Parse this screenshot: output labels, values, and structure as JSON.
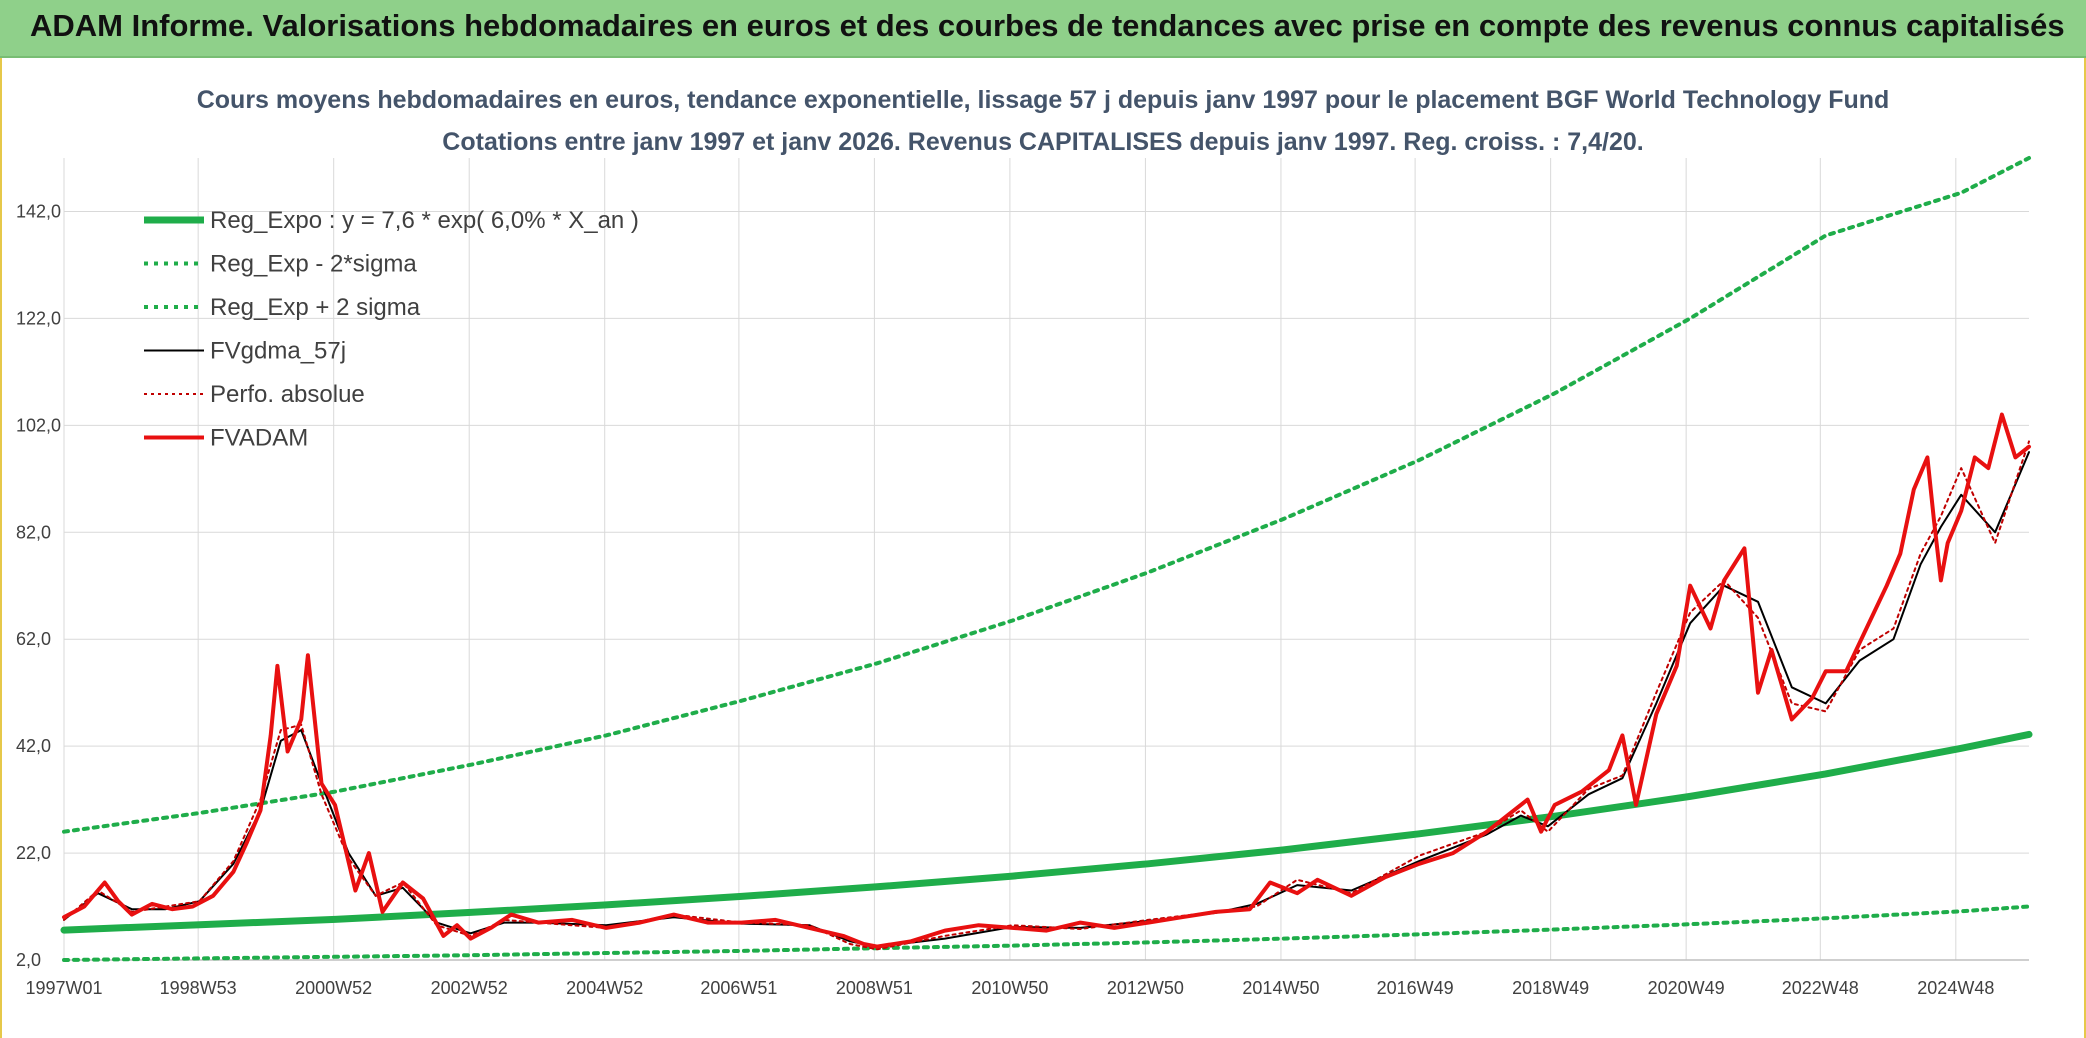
{
  "banner": {
    "title": "ADAM Informe. Valorisations hebdomadaires en euros et des courbes de tendances avec prise en compte des revenus connus capitalisés"
  },
  "colors": {
    "banner_bg": "#8fd08a",
    "regression": "#1fad4a",
    "sigma_bands": "#1fad4a",
    "gdma": "#000000",
    "perfo": "#c00000",
    "fvadam": "#e81010"
  },
  "chart_data": {
    "type": "line",
    "title_line1": "Cours moyens hebdomadaires en euros, tendance exponentielle, lissage 57 j depuis janv 1997 pour le placement BGF World Technology Fund",
    "title_line2": "Cotations entre janv 1997 et janv 2026. Revenus CAPITALISES depuis janv 1997. Reg. croiss. : 7,4/20.",
    "xlabel": "",
    "ylabel": "",
    "x_range_years": [
      1997.0,
      2026.0
    ],
    "ylim": [
      2,
      152
    ],
    "y_ticks": [
      2,
      22,
      42,
      62,
      82,
      102,
      122,
      142
    ],
    "y_tick_labels": [
      "2,0",
      "22,0",
      "42,0",
      "62,0",
      "82,0",
      "102,0",
      "122,0",
      "142,0"
    ],
    "x_tick_years": [
      1997.0,
      1998.98,
      2000.98,
      2002.98,
      2004.98,
      2006.96,
      2008.96,
      2010.96,
      2012.96,
      2014.96,
      2016.94,
      2018.94,
      2020.94,
      2022.92,
      2024.92
    ],
    "x_tick_labels": [
      "1997W01",
      "1998W53",
      "2000W52",
      "2002W52",
      "2004W52",
      "2006W51",
      "2008W51",
      "2010W50",
      "2012W50",
      "2014W50",
      "2016W49",
      "2018W49",
      "2020W49",
      "2022W48",
      "2024W48"
    ],
    "grid": true,
    "legend_position": "top-left",
    "series": [
      {
        "name": "Reg_Expo : y = 7,6 * exp( 6,0% *  X_an )",
        "style": "solid-thick",
        "color": "#1fad4a",
        "x": [
          1997,
          1999,
          2001,
          2003,
          2005,
          2007,
          2009,
          2011,
          2013,
          2015,
          2017,
          2019,
          2021,
          2023,
          2025,
          2026
        ],
        "y": [
          7.6,
          8.6,
          9.6,
          10.9,
          12.3,
          13.9,
          15.7,
          17.7,
          20.0,
          22.6,
          25.6,
          28.9,
          32.6,
          36.8,
          41.6,
          44.2
        ]
      },
      {
        "name": "Reg_Exp - 2*sigma",
        "style": "dotted",
        "color": "#1fad4a",
        "x": [
          1997,
          1999,
          2001,
          2003,
          2005,
          2007,
          2009,
          2011,
          2013,
          2015,
          2017,
          2019,
          2021,
          2023,
          2025,
          2026
        ],
        "y": [
          2.0,
          2.3,
          2.6,
          2.9,
          3.3,
          3.7,
          4.2,
          4.7,
          5.3,
          6.0,
          6.8,
          7.7,
          8.7,
          9.8,
          11.1,
          12.0
        ]
      },
      {
        "name": "Reg_Exp + 2 sigma",
        "style": "dotted",
        "color": "#1fad4a",
        "x": [
          1997,
          1999,
          2001,
          2003,
          2005,
          2007,
          2009,
          2011,
          2013,
          2015,
          2017,
          2019,
          2021,
          2023,
          2025,
          2026
        ],
        "y": [
          26.0,
          29.5,
          33.5,
          38.5,
          44.0,
          50.5,
          57.5,
          65.5,
          74.5,
          84.5,
          95.5,
          108.0,
          122.0,
          137.5,
          145.5,
          152.0
        ]
      },
      {
        "name": "FVgdma_57j",
        "style": "solid-thin",
        "color": "#000000",
        "x": [
          1997.0,
          1997.5,
          1998.0,
          1998.5,
          1999.0,
          1999.5,
          1999.9,
          2000.2,
          2000.5,
          2000.8,
          2001.2,
          2001.6,
          2002.0,
          2002.5,
          2003.0,
          2003.5,
          2004.0,
          2005.0,
          2006.0,
          2007.0,
          2008.0,
          2008.6,
          2009.0,
          2010.0,
          2011.0,
          2012.0,
          2013.0,
          2014.0,
          2014.6,
          2015.2,
          2016.0,
          2017.0,
          2018.0,
          2018.5,
          2018.9,
          2019.5,
          2020.0,
          2020.5,
          2021.0,
          2021.5,
          2022.0,
          2022.5,
          2023.0,
          2023.5,
          2024.0,
          2024.4,
          2024.7,
          2025.0,
          2025.5,
          2026.0
        ],
        "y": [
          9.5,
          14.5,
          11.5,
          11.5,
          13.0,
          20.0,
          30.0,
          43.0,
          45.0,
          35.0,
          22.0,
          14.0,
          15.5,
          9.0,
          7.0,
          9.0,
          9.0,
          8.5,
          10.0,
          8.8,
          8.5,
          5.5,
          4.5,
          6.0,
          8.2,
          8.0,
          9.3,
          10.8,
          12.5,
          16.0,
          15.0,
          20.5,
          25.5,
          29.0,
          27.0,
          33.0,
          36.0,
          50.0,
          65.0,
          72.0,
          69.0,
          53.0,
          50.0,
          58.0,
          62.0,
          76.0,
          83.0,
          89.0,
          82.0,
          97.0
        ]
      },
      {
        "name": "Perfo. absolue",
        "style": "dotted-thin",
        "color": "#c00000",
        "x": [
          1997.0,
          1997.5,
          1998.0,
          1998.5,
          1999.0,
          1999.5,
          1999.9,
          2000.2,
          2000.5,
          2000.8,
          2001.2,
          2001.6,
          2002.0,
          2002.5,
          2003.0,
          2003.5,
          2004.0,
          2005.0,
          2006.0,
          2007.0,
          2008.0,
          2008.6,
          2009.0,
          2010.0,
          2011.0,
          2012.0,
          2013.0,
          2014.0,
          2014.6,
          2015.2,
          2016.0,
          2017.0,
          2018.0,
          2018.5,
          2018.9,
          2019.5,
          2020.0,
          2020.5,
          2021.0,
          2021.5,
          2022.0,
          2022.5,
          2023.0,
          2023.5,
          2024.0,
          2024.4,
          2024.7,
          2025.0,
          2025.5,
          2026.0
        ],
        "y": [
          9.5,
          15.0,
          11.0,
          12.0,
          13.0,
          20.5,
          32.0,
          45.0,
          46.0,
          33.0,
          21.0,
          14.0,
          16.5,
          8.5,
          6.5,
          9.5,
          9.0,
          8.0,
          10.5,
          9.0,
          8.5,
          5.0,
          4.0,
          6.5,
          8.5,
          7.8,
          9.5,
          11.0,
          12.0,
          17.0,
          14.5,
          21.5,
          26.0,
          30.0,
          26.0,
          34.0,
          36.5,
          52.0,
          67.0,
          73.0,
          66.0,
          50.0,
          48.5,
          60.0,
          64.0,
          78.0,
          85.0,
          94.0,
          80.0,
          99.0
        ]
      },
      {
        "name": "FVADAM",
        "style": "solid-thick",
        "color": "#e81010",
        "x": [
          1997.0,
          1997.3,
          1997.6,
          1997.8,
          1998.0,
          1998.3,
          1998.6,
          1998.9,
          1999.2,
          1999.5,
          1999.7,
          1999.9,
          2000.05,
          2000.15,
          2000.3,
          2000.5,
          2000.6,
          2000.8,
          2001.0,
          2001.3,
          2001.5,
          2001.7,
          2002.0,
          2002.3,
          2002.6,
          2002.8,
          2003.0,
          2003.3,
          2003.6,
          2004.0,
          2004.5,
          2005.0,
          2005.5,
          2006.0,
          2006.5,
          2007.0,
          2007.5,
          2008.0,
          2008.5,
          2008.8,
          2009.0,
          2009.5,
          2010.0,
          2010.5,
          2011.0,
          2011.5,
          2012.0,
          2012.5,
          2013.0,
          2013.5,
          2014.0,
          2014.5,
          2014.8,
          2015.2,
          2015.5,
          2016.0,
          2016.5,
          2017.0,
          2017.5,
          2018.0,
          2018.3,
          2018.6,
          2018.8,
          2019.0,
          2019.4,
          2019.8,
          2020.0,
          2020.2,
          2020.5,
          2020.8,
          2021.0,
          2021.3,
          2021.5,
          2021.8,
          2022.0,
          2022.2,
          2022.5,
          2022.8,
          2023.0,
          2023.3,
          2023.6,
          2023.9,
          2024.1,
          2024.3,
          2024.5,
          2024.6,
          2024.7,
          2024.8,
          2025.0,
          2025.2,
          2025.4,
          2025.6,
          2025.8,
          2026.0
        ],
        "y": [
          10.0,
          12.0,
          16.5,
          13.0,
          10.5,
          12.5,
          11.5,
          12.0,
          14.0,
          18.5,
          24.0,
          30.0,
          44.0,
          57.0,
          41.0,
          47.0,
          59.0,
          35.0,
          31.0,
          15.0,
          22.0,
          11.0,
          16.5,
          13.5,
          6.5,
          8.5,
          6.0,
          8.0,
          10.5,
          9.0,
          9.5,
          8.0,
          9.0,
          10.5,
          9.0,
          9.0,
          9.5,
          8.0,
          6.5,
          5.0,
          4.5,
          5.5,
          7.5,
          8.5,
          8.0,
          7.5,
          9.0,
          8.0,
          9.0,
          10.0,
          11.0,
          11.5,
          16.5,
          14.5,
          17.0,
          14.0,
          17.5,
          20.0,
          22.0,
          26.0,
          29.0,
          32.0,
          26.0,
          31.0,
          33.5,
          37.5,
          44.0,
          31.0,
          48.0,
          57.0,
          72.0,
          64.0,
          73.0,
          79.0,
          52.0,
          60.0,
          47.0,
          51.0,
          56.0,
          56.0,
          64.0,
          72.0,
          78.0,
          90.0,
          96.0,
          84.0,
          73.0,
          80.0,
          86.0,
          96.0,
          94.0,
          104.0,
          96.0,
          98.0
        ]
      }
    ]
  }
}
